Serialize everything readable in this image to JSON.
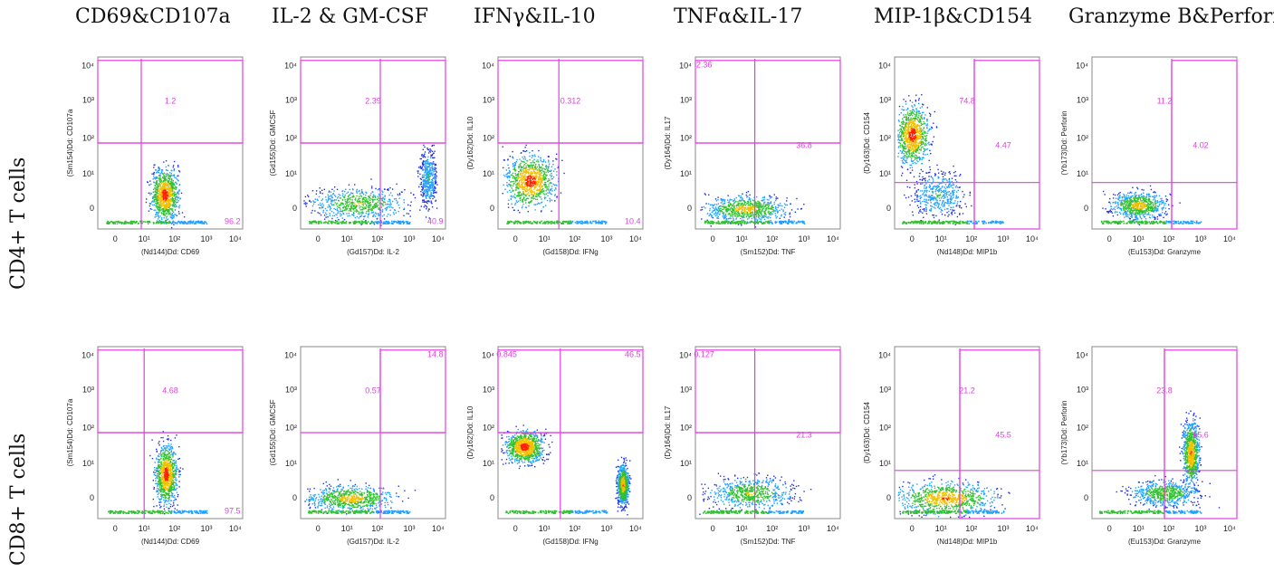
{
  "column_titles": [
    "CD69&CD107a",
    "IL-2 & GM-CSF",
    "IFNγ&IL-10",
    "TNFα&IL-17",
    "MIP-1β&CD154",
    "Granzyme B&Perforin"
  ],
  "row_labels": [
    "CD4+ T cells",
    "CD8+ T cells"
  ],
  "colors": {
    "gate": "#e040e0",
    "low": "#0000ff",
    "mid": "#00c000",
    "high": "#ff0000"
  },
  "chart_data": [
    {
      "type": "scatter",
      "row": 0,
      "col": 0,
      "xlabel": "(Nd144)Dd: CD69",
      "ylabel": "(Sm154)Dd: CD107a",
      "x_ticks": [
        "0",
        "10¹",
        "10²",
        "10³",
        "10⁴"
      ],
      "y_ticks": [
        "0",
        "10¹",
        "10²",
        "10³",
        "10⁴"
      ],
      "gate_labels": [
        {
          "text": "1.2",
          "pos": "upper"
        },
        {
          "text": "96.2",
          "pos": "lower-right"
        }
      ],
      "density": "CD69 intermediate blob centered near 10^2, CD107a low"
    },
    {
      "type": "scatter",
      "row": 0,
      "col": 1,
      "xlabel": "(Gd157)Dd: IL-2",
      "ylabel": "(Gd155)Dd: GMCSF",
      "x_ticks": [
        "0",
        "10¹",
        "10²",
        "10³",
        "10⁴"
      ],
      "y_ticks": [
        "0",
        "10¹",
        "10²",
        "10³",
        "10⁴"
      ],
      "gate_labels": [
        {
          "text": "2.39",
          "pos": "upper"
        },
        {
          "text": "40.9",
          "pos": "lower-right"
        }
      ],
      "density": "broad low population, tail to IL-2 high"
    },
    {
      "type": "scatter",
      "row": 0,
      "col": 2,
      "xlabel": "(Gd158)Dd: IFNg",
      "ylabel": "(Dy162)Dd: IL10",
      "x_ticks": [
        "0",
        "10¹",
        "10²",
        "10³",
        "10⁴"
      ],
      "y_ticks": [
        "0",
        "10¹",
        "10²",
        "10³",
        "10⁴"
      ],
      "gate_labels": [
        {
          "text": "0.312",
          "pos": "upper"
        },
        {
          "text": "10.4",
          "pos": "lower-right"
        }
      ],
      "density": "dense square block low IFNg, IL10 0-10^2"
    },
    {
      "type": "scatter",
      "row": 0,
      "col": 3,
      "xlabel": "(Sm152)Dd: TNF",
      "ylabel": "(Dy164)Dd: IL17",
      "x_ticks": [
        "0",
        "10¹",
        "10²",
        "10³",
        "10⁴"
      ],
      "y_ticks": [
        "0",
        "10¹",
        "10²",
        "10³",
        "10⁴"
      ],
      "gate_labels": [
        {
          "text": "2.36",
          "pos": "upper-left"
        },
        {
          "text": "36.8",
          "pos": "right-mid"
        }
      ],
      "density": "low baseline with spread to TNF high"
    },
    {
      "type": "scatter",
      "row": 0,
      "col": 4,
      "xlabel": "(Nd148)Dd: MIP1b",
      "ylabel": "(Dy163)Dd: CD154",
      "x_ticks": [
        "0",
        "10¹",
        "10²",
        "10³",
        "10⁴"
      ],
      "y_ticks": [
        "0",
        "10¹",
        "10²",
        "10³",
        "10⁴"
      ],
      "gate_labels": [
        {
          "text": "74.8",
          "pos": "upper"
        },
        {
          "text": "4.47",
          "pos": "right-mid"
        }
      ],
      "density": "blob at low MIP1b, CD154 10^1-10^2"
    },
    {
      "type": "scatter",
      "row": 0,
      "col": 5,
      "xlabel": "(Eu153)Dd: Granzyme",
      "ylabel": "(Yb173)Dd: Perforin",
      "x_ticks": [
        "0",
        "10¹",
        "10²",
        "10³",
        "10⁴"
      ],
      "y_ticks": [
        "0",
        "10¹",
        "10²",
        "10³",
        "10⁴"
      ],
      "gate_labels": [
        {
          "text": "11.2",
          "pos": "upper"
        },
        {
          "text": "4.02",
          "pos": "right-mid"
        }
      ],
      "density": "low population near 0-10^2"
    },
    {
      "type": "scatter",
      "row": 1,
      "col": 0,
      "xlabel": "(Nd144)Dd: CD69",
      "ylabel": "(Sm154)Dd: CD107a",
      "x_ticks": [
        "0",
        "10¹",
        "10²",
        "10³",
        "10⁴"
      ],
      "y_ticks": [
        "0",
        "10¹",
        "10²",
        "10³",
        "10⁴"
      ],
      "gate_labels": [
        {
          "text": "4.68",
          "pos": "upper"
        },
        {
          "text": "97.5",
          "pos": "lower-right"
        }
      ],
      "density": "CD69 10^2 vertical blob"
    },
    {
      "type": "scatter",
      "row": 1,
      "col": 1,
      "xlabel": "(Gd157)Dd: IL-2",
      "ylabel": "(Gd155)Dd: GMCSF",
      "x_ticks": [
        "0",
        "10¹",
        "10²",
        "10³",
        "10⁴"
      ],
      "y_ticks": [
        "0",
        "10¹",
        "10²",
        "10³",
        "10⁴"
      ],
      "gate_labels": [
        {
          "text": "14.8",
          "pos": "upper-right"
        },
        {
          "text": "0.57",
          "pos": "upper"
        }
      ],
      "density": "flat low distribution"
    },
    {
      "type": "scatter",
      "row": 1,
      "col": 2,
      "xlabel": "(Gd158)Dd: IFNg",
      "ylabel": "(Dy162)Dd: IL10",
      "x_ticks": [
        "0",
        "10¹",
        "10²",
        "10³",
        "10⁴"
      ],
      "y_ticks": [
        "0",
        "10¹",
        "10²",
        "10³",
        "10⁴"
      ],
      "gate_labels": [
        {
          "text": "0.845",
          "pos": "upper-left"
        },
        {
          "text": "46.5",
          "pos": "upper-right"
        }
      ],
      "density": "two populations: low IFNg and high IFNg"
    },
    {
      "type": "scatter",
      "row": 1,
      "col": 3,
      "xlabel": "(Sm152)Dd: TNF",
      "ylabel": "(Dy164)Dd: IL17",
      "x_ticks": [
        "0",
        "10¹",
        "10²",
        "10³",
        "10⁴"
      ],
      "y_ticks": [
        "0",
        "10¹",
        "10²",
        "10³",
        "10⁴"
      ],
      "gate_labels": [
        {
          "text": "0.127",
          "pos": "upper-left"
        },
        {
          "text": "21.3",
          "pos": "right-mid"
        }
      ],
      "density": "low baseline distribution"
    },
    {
      "type": "scatter",
      "row": 1,
      "col": 4,
      "xlabel": "(Nd148)Dd: MIP1b",
      "ylabel": "(Dy163)Dd: CD154",
      "x_ticks": [
        "0",
        "10¹",
        "10²",
        "10³",
        "10⁴"
      ],
      "y_ticks": [
        "0",
        "10¹",
        "10²",
        "10³",
        "10⁴"
      ],
      "gate_labels": [
        {
          "text": "21.2",
          "pos": "upper"
        },
        {
          "text": "45.5",
          "pos": "right-mid"
        }
      ],
      "density": "broad low distribution across MIP1b"
    },
    {
      "type": "scatter",
      "row": 1,
      "col": 5,
      "xlabel": "(Eu153)Dd: Granzyme",
      "ylabel": "(Yb173)Dd: Perforin",
      "x_ticks": [
        "0",
        "10¹",
        "10²",
        "10³",
        "10⁴"
      ],
      "y_ticks": [
        "0",
        "10¹",
        "10²",
        "10³",
        "10⁴"
      ],
      "gate_labels": [
        {
          "text": "23.8",
          "pos": "upper"
        },
        {
          "text": "65.6",
          "pos": "right-mid"
        }
      ],
      "density": "diagonal co-expression toward high Granzyme/Perforin"
    }
  ]
}
